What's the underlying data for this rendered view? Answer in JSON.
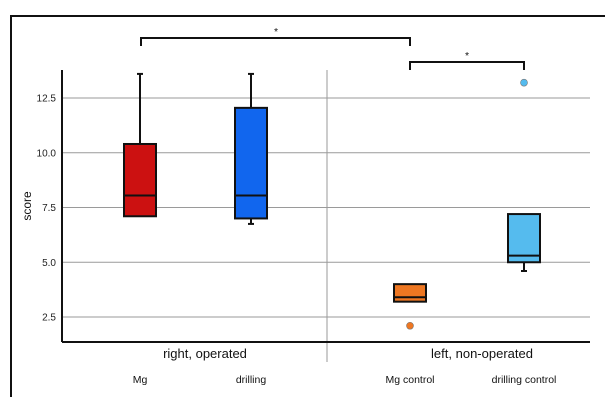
{
  "chart_data": {
    "type": "box",
    "ylabel": "score",
    "yticks": [
      "2.5",
      "5.0",
      "7.5",
      "10.0",
      "12.5"
    ],
    "ytick_values": [
      2.5,
      5.0,
      7.5,
      10.0,
      12.5
    ],
    "ylim": [
      1.2,
      13.9
    ],
    "grid": "horizontal",
    "groups": [
      {
        "label": "right, operated",
        "categories": [
          "Mg",
          "drilling"
        ]
      },
      {
        "label": "left, non-operated",
        "categories": [
          "Mg control",
          "drilling control"
        ]
      }
    ],
    "boxes": [
      {
        "category": "Mg",
        "color": "#cc1111",
        "whisker_low": 7.1,
        "q1": 7.1,
        "median": 8.05,
        "q3": 10.4,
        "whisker_high": 13.6,
        "outliers": []
      },
      {
        "category": "drilling",
        "color": "#1166ee",
        "whisker_low": 6.75,
        "q1": 7.0,
        "median": 8.05,
        "q3": 12.05,
        "whisker_high": 13.6,
        "outliers": []
      },
      {
        "category": "Mg control",
        "color": "#ee7722",
        "whisker_low": 3.2,
        "q1": 3.2,
        "median": 3.4,
        "q3": 4.0,
        "whisker_high": 4.0,
        "outliers": [
          2.1
        ]
      },
      {
        "category": "drilling control",
        "color": "#55bbee",
        "whisker_low": 4.6,
        "q1": 5.0,
        "median": 5.3,
        "q3": 7.2,
        "whisker_high": 7.2,
        "outliers": [
          13.2
        ]
      }
    ],
    "annotations": [
      {
        "text": "*",
        "from_group": 0,
        "to_category": 2,
        "type": "bracket"
      },
      {
        "text": "*",
        "from_category": 2,
        "to_category": 3,
        "type": "bracket"
      }
    ]
  }
}
